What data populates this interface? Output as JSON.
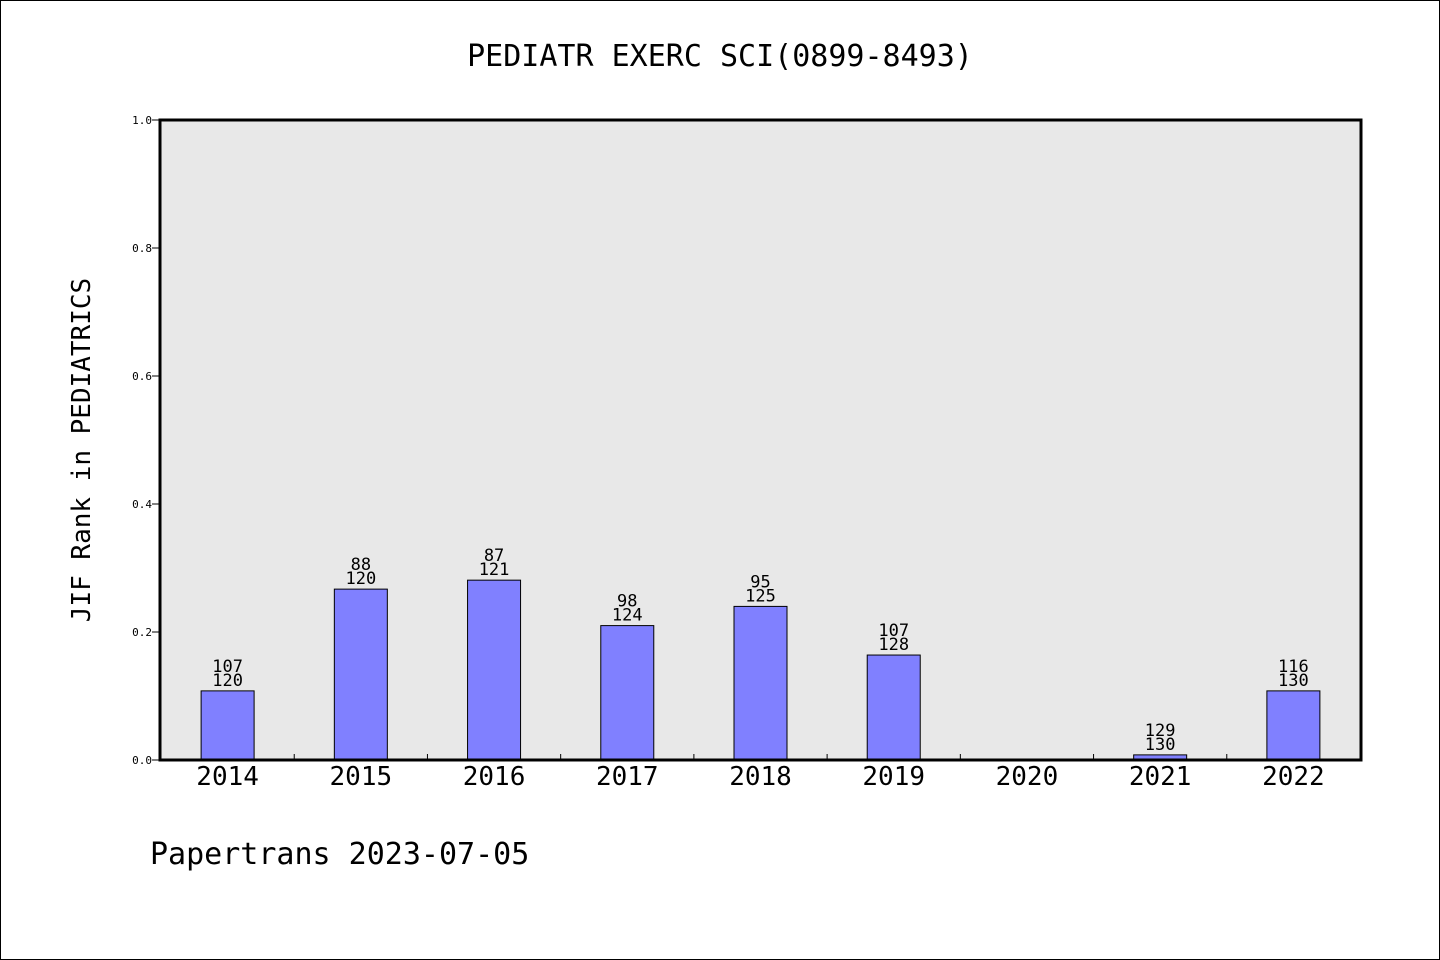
{
  "chart_data": {
    "type": "bar",
    "title": "PEDIATR EXERC SCI(0899-8493)",
    "xlabel": "",
    "ylabel": "JIF Rank in PEDIATRICS",
    "ylim": [
      0,
      1.0
    ],
    "yticks": [
      "0.0",
      "0.2",
      "0.4",
      "0.6",
      "0.8",
      "1.0"
    ],
    "categories": [
      "2014",
      "2015",
      "2016",
      "2017",
      "2018",
      "2019",
      "2020",
      "2021",
      "2022"
    ],
    "values": [
      0.108,
      0.267,
      0.281,
      0.21,
      0.24,
      0.164,
      null,
      0.008,
      0.108
    ],
    "labels": [
      {
        "top": "107",
        "bottom": "120"
      },
      {
        "top": "88",
        "bottom": "120"
      },
      {
        "top": "87",
        "bottom": "121"
      },
      {
        "top": "98",
        "bottom": "124"
      },
      {
        "top": "95",
        "bottom": "125"
      },
      {
        "top": "107",
        "bottom": "128"
      },
      null,
      {
        "top": "129",
        "bottom": "130"
      },
      {
        "top": "116",
        "bottom": "130"
      }
    ],
    "grid": false,
    "bar_color": "#8080ff",
    "plot_background": "#e8e8e8"
  },
  "footer": {
    "credit": "Papertrans 2023-07-05"
  }
}
